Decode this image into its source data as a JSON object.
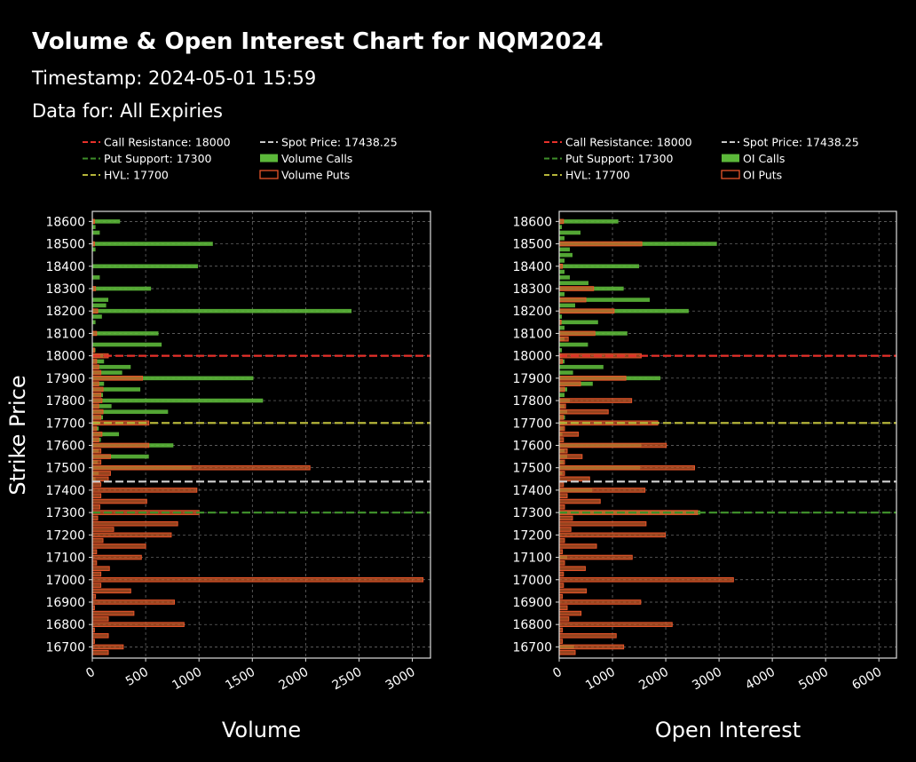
{
  "title": "Volume & Open Interest Chart for NQM2024",
  "timestamp": "Timestamp: 2024-05-01 15:59",
  "data_for": "Data for: All Expiries",
  "colors": {
    "call_resistance": "#e8312a",
    "put_support": "#3e8e2a",
    "hvl": "#b5b53a",
    "spot": "#c8c8c8",
    "calls": "#5cb83a",
    "puts": "#e8552a"
  },
  "chart_data": [
    {
      "type": "bar",
      "orientation": "horizontal",
      "xlabel": "Volume",
      "ylabel": "Strike Price",
      "xlim": [
        0,
        3170
      ],
      "ylim": [
        16650,
        18645
      ],
      "grid": true,
      "xticks": [
        "0",
        "500",
        "1000",
        "1500",
        "2000",
        "2500",
        "3000"
      ],
      "yticks": [
        "16700",
        "16800",
        "16900",
        "17000",
        "17100",
        "17200",
        "17300",
        "17400",
        "17500",
        "17600",
        "17700",
        "17800",
        "17900",
        "18000",
        "18100",
        "18200",
        "18300",
        "18400",
        "18500",
        "18600"
      ],
      "legend": [
        "Call Resistance: 18000",
        "Spot Price: 17438.25",
        "Put Support: 17300",
        "Volume Calls",
        "HVL: 17700",
        "Volume Puts"
      ],
      "levels": {
        "call_resistance": 18000,
        "put_support": 17300,
        "hvl": 17700,
        "spot": 17438.25
      },
      "series": [
        {
          "name": "Volume Calls",
          "points": [
            [
              18600,
              260
            ],
            [
              18575,
              30
            ],
            [
              18550,
              70
            ],
            [
              18500,
              1130
            ],
            [
              18475,
              30
            ],
            [
              18400,
              990
            ],
            [
              18350,
              70
            ],
            [
              18300,
              550
            ],
            [
              18250,
              150
            ],
            [
              18225,
              130
            ],
            [
              18200,
              2430
            ],
            [
              18175,
              90
            ],
            [
              18150,
              30
            ],
            [
              18100,
              620
            ],
            [
              18050,
              650
            ],
            [
              18025,
              30
            ],
            [
              18000,
              100
            ],
            [
              17975,
              110
            ],
            [
              17950,
              360
            ],
            [
              17925,
              280
            ],
            [
              17900,
              1510
            ],
            [
              17875,
              110
            ],
            [
              17850,
              450
            ],
            [
              17825,
              100
            ],
            [
              17800,
              1600
            ],
            [
              17775,
              180
            ],
            [
              17750,
              710
            ],
            [
              17725,
              100
            ],
            [
              17700,
              60
            ],
            [
              17675,
              60
            ],
            [
              17650,
              250
            ],
            [
              17625,
              80
            ],
            [
              17600,
              760
            ],
            [
              17575,
              60
            ],
            [
              17550,
              530
            ],
            [
              17525,
              50
            ],
            [
              17500,
              930
            ],
            [
              17475,
              60
            ],
            [
              17450,
              30
            ]
          ]
        },
        {
          "name": "Volume Puts",
          "points": [
            [
              18600,
              20
            ],
            [
              18500,
              20
            ],
            [
              18300,
              30
            ],
            [
              18200,
              50
            ],
            [
              18100,
              40
            ],
            [
              18025,
              20
            ],
            [
              18000,
              150
            ],
            [
              17975,
              40
            ],
            [
              17950,
              60
            ],
            [
              17925,
              80
            ],
            [
              17900,
              470
            ],
            [
              17875,
              60
            ],
            [
              17850,
              100
            ],
            [
              17825,
              80
            ],
            [
              17800,
              90
            ],
            [
              17775,
              60
            ],
            [
              17750,
              100
            ],
            [
              17725,
              80
            ],
            [
              17700,
              530
            ],
            [
              17675,
              40
            ],
            [
              17650,
              90
            ],
            [
              17625,
              60
            ],
            [
              17600,
              530
            ],
            [
              17575,
              80
            ],
            [
              17550,
              170
            ],
            [
              17525,
              80
            ],
            [
              17500,
              2040
            ],
            [
              17475,
              170
            ],
            [
              17450,
              150
            ],
            [
              17425,
              80
            ],
            [
              17400,
              980
            ],
            [
              17375,
              80
            ],
            [
              17350,
              510
            ],
            [
              17325,
              70
            ],
            [
              17300,
              1000
            ],
            [
              17275,
              50
            ],
            [
              17250,
              800
            ],
            [
              17225,
              200
            ],
            [
              17200,
              740
            ],
            [
              17175,
              100
            ],
            [
              17150,
              500
            ],
            [
              17125,
              40
            ],
            [
              17100,
              460
            ],
            [
              17075,
              40
            ],
            [
              17050,
              160
            ],
            [
              17025,
              80
            ],
            [
              17000,
              3100
            ],
            [
              16975,
              80
            ],
            [
              16950,
              360
            ],
            [
              16925,
              30
            ],
            [
              16900,
              770
            ],
            [
              16875,
              20
            ],
            [
              16850,
              390
            ],
            [
              16825,
              150
            ],
            [
              16800,
              860
            ],
            [
              16775,
              20
            ],
            [
              16750,
              150
            ],
            [
              16725,
              20
            ],
            [
              16700,
              290
            ],
            [
              16675,
              150
            ]
          ]
        }
      ]
    },
    {
      "type": "bar",
      "orientation": "horizontal",
      "xlabel": "Open Interest",
      "ylabel": "",
      "xlim": [
        0,
        6330
      ],
      "ylim": [
        16650,
        18645
      ],
      "grid": true,
      "xticks": [
        "0",
        "1000",
        "2000",
        "3000",
        "4000",
        "5000",
        "6000"
      ],
      "yticks": [
        "16700",
        "16800",
        "16900",
        "17000",
        "17100",
        "17200",
        "17300",
        "17400",
        "17500",
        "17600",
        "17700",
        "17800",
        "17900",
        "18000",
        "18100",
        "18200",
        "18300",
        "18400",
        "18500",
        "18600"
      ],
      "legend": [
        "Call Resistance: 18000",
        "Spot Price: 17438.25",
        "Put Support: 17300",
        "OI Calls",
        "HVL: 17700",
        "OI Puts"
      ],
      "levels": {
        "call_resistance": 18000,
        "put_support": 17300,
        "hvl": 17700,
        "spot": 17438.25
      },
      "series": [
        {
          "name": "OI Calls",
          "points": [
            [
              18600,
              1110
            ],
            [
              18575,
              50
            ],
            [
              18550,
              400
            ],
            [
              18525,
              100
            ],
            [
              18500,
              2960
            ],
            [
              18475,
              200
            ],
            [
              18450,
              250
            ],
            [
              18425,
              100
            ],
            [
              18400,
              1500
            ],
            [
              18375,
              100
            ],
            [
              18350,
              200
            ],
            [
              18325,
              550
            ],
            [
              18300,
              1210
            ],
            [
              18275,
              100
            ],
            [
              18250,
              1700
            ],
            [
              18225,
              300
            ],
            [
              18200,
              2430
            ],
            [
              18175,
              50
            ],
            [
              18150,
              730
            ],
            [
              18125,
              100
            ],
            [
              18100,
              1280
            ],
            [
              18075,
              100
            ],
            [
              18050,
              540
            ],
            [
              18025,
              50
            ],
            [
              18000,
              50
            ],
            [
              17975,
              100
            ],
            [
              17950,
              830
            ],
            [
              17925,
              260
            ],
            [
              17900,
              1900
            ],
            [
              17875,
              630
            ],
            [
              17850,
              150
            ],
            [
              17825,
              100
            ],
            [
              17800,
              200
            ],
            [
              17775,
              100
            ],
            [
              17750,
              150
            ],
            [
              17725,
              110
            ],
            [
              17700,
              100
            ],
            [
              17675,
              80
            ],
            [
              17650,
              60
            ],
            [
              17600,
              1540
            ],
            [
              17575,
              100
            ],
            [
              17550,
              150
            ],
            [
              17525,
              80
            ],
            [
              17500,
              1520
            ],
            [
              17475,
              60
            ],
            [
              17400,
              620
            ],
            [
              17300,
              2650
            ],
            [
              17100,
              150
            ],
            [
              16700,
              280
            ]
          ]
        },
        {
          "name": "OI Puts",
          "points": [
            [
              18600,
              80
            ],
            [
              18500,
              1550
            ],
            [
              18400,
              60
            ],
            [
              18300,
              645
            ],
            [
              18250,
              500
            ],
            [
              18200,
              1030
            ],
            [
              18150,
              35
            ],
            [
              18100,
              670
            ],
            [
              18075,
              170
            ],
            [
              18000,
              1540
            ],
            [
              17975,
              60
            ],
            [
              17900,
              1250
            ],
            [
              17875,
              400
            ],
            [
              17850,
              100
            ],
            [
              17800,
              1360
            ],
            [
              17775,
              120
            ],
            [
              17750,
              920
            ],
            [
              17725,
              80
            ],
            [
              17700,
              1850
            ],
            [
              17675,
              100
            ],
            [
              17650,
              360
            ],
            [
              17625,
              80
            ],
            [
              17600,
              2010
            ],
            [
              17575,
              150
            ],
            [
              17550,
              430
            ],
            [
              17525,
              100
            ],
            [
              17500,
              2540
            ],
            [
              17475,
              100
            ],
            [
              17450,
              570
            ],
            [
              17425,
              80
            ],
            [
              17400,
              1610
            ],
            [
              17375,
              150
            ],
            [
              17350,
              770
            ],
            [
              17325,
              100
            ],
            [
              17300,
              2600
            ],
            [
              17275,
              250
            ],
            [
              17250,
              1630
            ],
            [
              17225,
              220
            ],
            [
              17200,
              1990
            ],
            [
              17175,
              100
            ],
            [
              17150,
              700
            ],
            [
              17125,
              60
            ],
            [
              17100,
              1370
            ],
            [
              17075,
              100
            ],
            [
              17050,
              490
            ],
            [
              17025,
              80
            ],
            [
              17000,
              3270
            ],
            [
              16975,
              80
            ],
            [
              16950,
              510
            ],
            [
              16925,
              60
            ],
            [
              16900,
              1530
            ],
            [
              16875,
              150
            ],
            [
              16850,
              410
            ],
            [
              16825,
              180
            ],
            [
              16800,
              2120
            ],
            [
              16775,
              60
            ],
            [
              16750,
              1070
            ],
            [
              16725,
              60
            ],
            [
              16700,
              1210
            ],
            [
              16675,
              300
            ]
          ]
        }
      ]
    }
  ]
}
